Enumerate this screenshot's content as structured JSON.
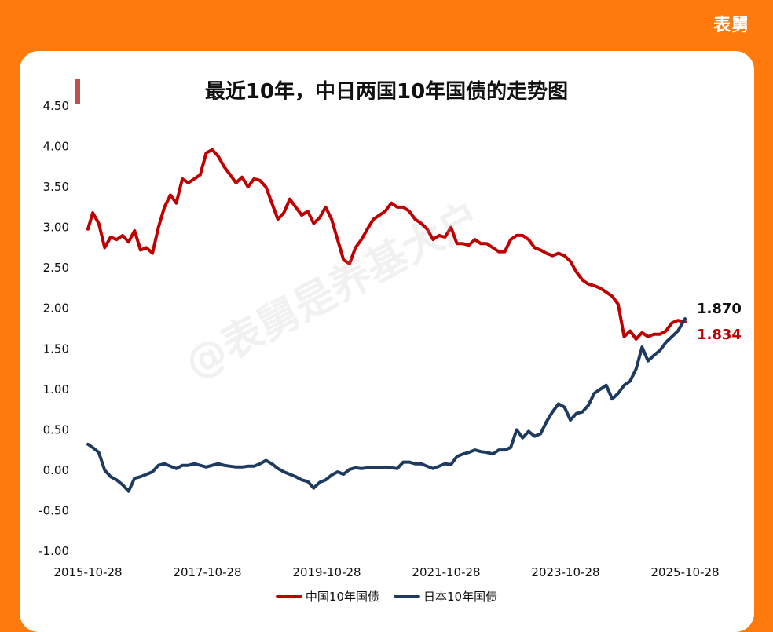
{
  "brand": "表舅",
  "title": "最近10年，中日两国10年国债的走势图",
  "watermark": "@表舅是养基大户",
  "colors": {
    "background": "#ff7a0d",
    "accent_bar": "#c0504d",
    "china_series": "#c00000",
    "japan_series": "#1f3a5f"
  },
  "chart_data": {
    "type": "line",
    "title": "最近10年，中日两国10年国债的走势图",
    "xlabel": "",
    "ylabel": "",
    "ylim": [
      -1.0,
      4.5
    ],
    "yticks": [
      "4.50",
      "4.00",
      "3.50",
      "3.00",
      "2.50",
      "2.00",
      "1.50",
      "1.00",
      "0.50",
      "0.00",
      "-0.50",
      "-1.00"
    ],
    "ytick_values": [
      4.5,
      4.0,
      3.5,
      3.0,
      2.5,
      2.0,
      1.5,
      1.0,
      0.5,
      0.0,
      -0.5,
      -1.0
    ],
    "xticks": [
      "2015-10-28",
      "2017-10-28",
      "2019-10-28",
      "2021-10-28",
      "2023-10-28",
      "2025-10-28"
    ],
    "xtick_values": [
      2015.82,
      2017.82,
      2019.82,
      2021.82,
      2023.82,
      2025.82
    ],
    "xlim": [
      2015.82,
      2025.82
    ],
    "grid": false,
    "legend_position": "bottom",
    "series": [
      {
        "name": "中国10年国债",
        "color": "#c00000",
        "end_label": "1.834",
        "x": [
          2015.82,
          2015.9,
          2016.0,
          2016.1,
          2016.2,
          2016.3,
          2016.4,
          2016.5,
          2016.6,
          2016.7,
          2016.8,
          2016.9,
          2017.0,
          2017.1,
          2017.2,
          2017.3,
          2017.4,
          2017.5,
          2017.6,
          2017.7,
          2017.8,
          2017.9,
          2018.0,
          2018.1,
          2018.2,
          2018.3,
          2018.4,
          2018.5,
          2018.6,
          2018.7,
          2018.8,
          2018.9,
          2019.0,
          2019.1,
          2019.2,
          2019.3,
          2019.4,
          2019.5,
          2019.6,
          2019.7,
          2019.8,
          2019.9,
          2020.0,
          2020.1,
          2020.2,
          2020.3,
          2020.4,
          2020.5,
          2020.6,
          2020.7,
          2020.8,
          2020.9,
          2021.0,
          2021.1,
          2021.2,
          2021.3,
          2021.4,
          2021.5,
          2021.6,
          2021.7,
          2021.8,
          2021.9,
          2022.0,
          2022.1,
          2022.2,
          2022.3,
          2022.4,
          2022.5,
          2022.6,
          2022.7,
          2022.8,
          2022.9,
          2023.0,
          2023.1,
          2023.2,
          2023.3,
          2023.4,
          2023.5,
          2023.6,
          2023.7,
          2023.8,
          2023.9,
          2024.0,
          2024.1,
          2024.2,
          2024.3,
          2024.4,
          2024.5,
          2024.6,
          2024.7,
          2024.8,
          2024.9,
          2025.0,
          2025.1,
          2025.2,
          2025.3,
          2025.4,
          2025.5,
          2025.6,
          2025.7,
          2025.82
        ],
        "values": [
          2.98,
          3.18,
          3.05,
          2.75,
          2.88,
          2.85,
          2.9,
          2.82,
          2.96,
          2.72,
          2.75,
          2.68,
          3.0,
          3.25,
          3.4,
          3.3,
          3.6,
          3.55,
          3.6,
          3.65,
          3.92,
          3.96,
          3.88,
          3.75,
          3.65,
          3.55,
          3.62,
          3.5,
          3.6,
          3.58,
          3.5,
          3.3,
          3.1,
          3.18,
          3.35,
          3.25,
          3.15,
          3.2,
          3.05,
          3.12,
          3.25,
          3.1,
          2.85,
          2.6,
          2.55,
          2.75,
          2.85,
          2.98,
          3.1,
          3.15,
          3.2,
          3.3,
          3.25,
          3.25,
          3.2,
          3.1,
          3.05,
          2.98,
          2.85,
          2.9,
          2.88,
          3.0,
          2.8,
          2.8,
          2.78,
          2.85,
          2.8,
          2.8,
          2.75,
          2.7,
          2.7,
          2.85,
          2.9,
          2.9,
          2.85,
          2.75,
          2.72,
          2.68,
          2.65,
          2.68,
          2.65,
          2.58,
          2.45,
          2.35,
          2.3,
          2.28,
          2.25,
          2.2,
          2.15,
          2.05,
          1.65,
          1.72,
          1.62,
          1.7,
          1.65,
          1.68,
          1.68,
          1.72,
          1.82,
          1.85,
          1.834
        ]
      },
      {
        "name": "日本10年国债",
        "color": "#1f3a5f",
        "end_label": "1.870",
        "x": [
          2015.82,
          2015.9,
          2016.0,
          2016.1,
          2016.2,
          2016.3,
          2016.4,
          2016.5,
          2016.6,
          2016.7,
          2016.8,
          2016.9,
          2017.0,
          2017.1,
          2017.2,
          2017.3,
          2017.4,
          2017.5,
          2017.6,
          2017.7,
          2017.8,
          2017.9,
          2018.0,
          2018.1,
          2018.2,
          2018.3,
          2018.4,
          2018.5,
          2018.6,
          2018.7,
          2018.8,
          2018.9,
          2019.0,
          2019.1,
          2019.2,
          2019.3,
          2019.4,
          2019.5,
          2019.6,
          2019.7,
          2019.8,
          2019.9,
          2020.0,
          2020.1,
          2020.2,
          2020.3,
          2020.4,
          2020.5,
          2020.6,
          2020.7,
          2020.8,
          2020.9,
          2021.0,
          2021.1,
          2021.2,
          2021.3,
          2021.4,
          2021.5,
          2021.6,
          2021.7,
          2021.8,
          2021.9,
          2022.0,
          2022.1,
          2022.2,
          2022.3,
          2022.4,
          2022.5,
          2022.6,
          2022.7,
          2022.8,
          2022.9,
          2023.0,
          2023.1,
          2023.2,
          2023.3,
          2023.4,
          2023.5,
          2023.6,
          2023.7,
          2023.8,
          2023.9,
          2024.0,
          2024.1,
          2024.2,
          2024.3,
          2024.4,
          2024.5,
          2024.6,
          2024.7,
          2024.8,
          2024.9,
          2025.0,
          2025.1,
          2025.2,
          2025.3,
          2025.4,
          2025.5,
          2025.6,
          2025.7,
          2025.82
        ],
        "values": [
          0.32,
          0.28,
          0.22,
          0.0,
          -0.08,
          -0.12,
          -0.18,
          -0.26,
          -0.1,
          -0.08,
          -0.05,
          -0.02,
          0.06,
          0.08,
          0.05,
          0.02,
          0.06,
          0.06,
          0.08,
          0.06,
          0.04,
          0.06,
          0.08,
          0.06,
          0.05,
          0.04,
          0.04,
          0.05,
          0.05,
          0.08,
          0.12,
          0.08,
          0.02,
          -0.02,
          -0.05,
          -0.08,
          -0.12,
          -0.14,
          -0.22,
          -0.15,
          -0.12,
          -0.06,
          -0.02,
          -0.05,
          0.01,
          0.03,
          0.02,
          0.03,
          0.03,
          0.03,
          0.04,
          0.03,
          0.02,
          0.1,
          0.1,
          0.08,
          0.08,
          0.05,
          0.02,
          0.05,
          0.08,
          0.07,
          0.17,
          0.2,
          0.22,
          0.25,
          0.23,
          0.22,
          0.2,
          0.25,
          0.25,
          0.28,
          0.5,
          0.4,
          0.48,
          0.42,
          0.45,
          0.6,
          0.72,
          0.82,
          0.78,
          0.62,
          0.7,
          0.72,
          0.8,
          0.95,
          1.0,
          1.05,
          0.88,
          0.95,
          1.05,
          1.1,
          1.25,
          1.52,
          1.35,
          1.42,
          1.48,
          1.58,
          1.65,
          1.72,
          1.87
        ]
      }
    ]
  }
}
